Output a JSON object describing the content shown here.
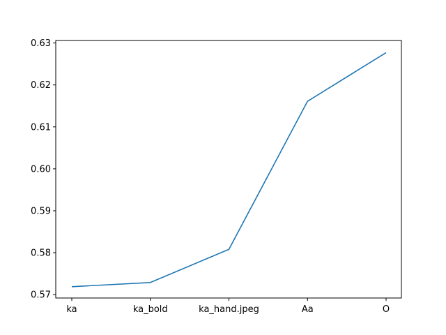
{
  "chart_data": {
    "type": "line",
    "categories": [
      "ka",
      "ka_bold",
      "ka_hand.jpeg",
      "Aa",
      "O"
    ],
    "series": [
      {
        "values": [
          0.5719,
          0.5729,
          0.5808,
          0.6161,
          0.6277
        ]
      }
    ],
    "yticks": [
      0.57,
      0.58,
      0.59,
      0.6,
      0.61,
      0.62,
      0.63
    ],
    "ytick_labels": [
      "0.57",
      "0.58",
      "0.59",
      "0.60",
      "0.61",
      "0.62",
      "0.63"
    ],
    "ylim": [
      0.5692,
      0.6306
    ],
    "grid": false,
    "line_color": "#1f77b4"
  }
}
